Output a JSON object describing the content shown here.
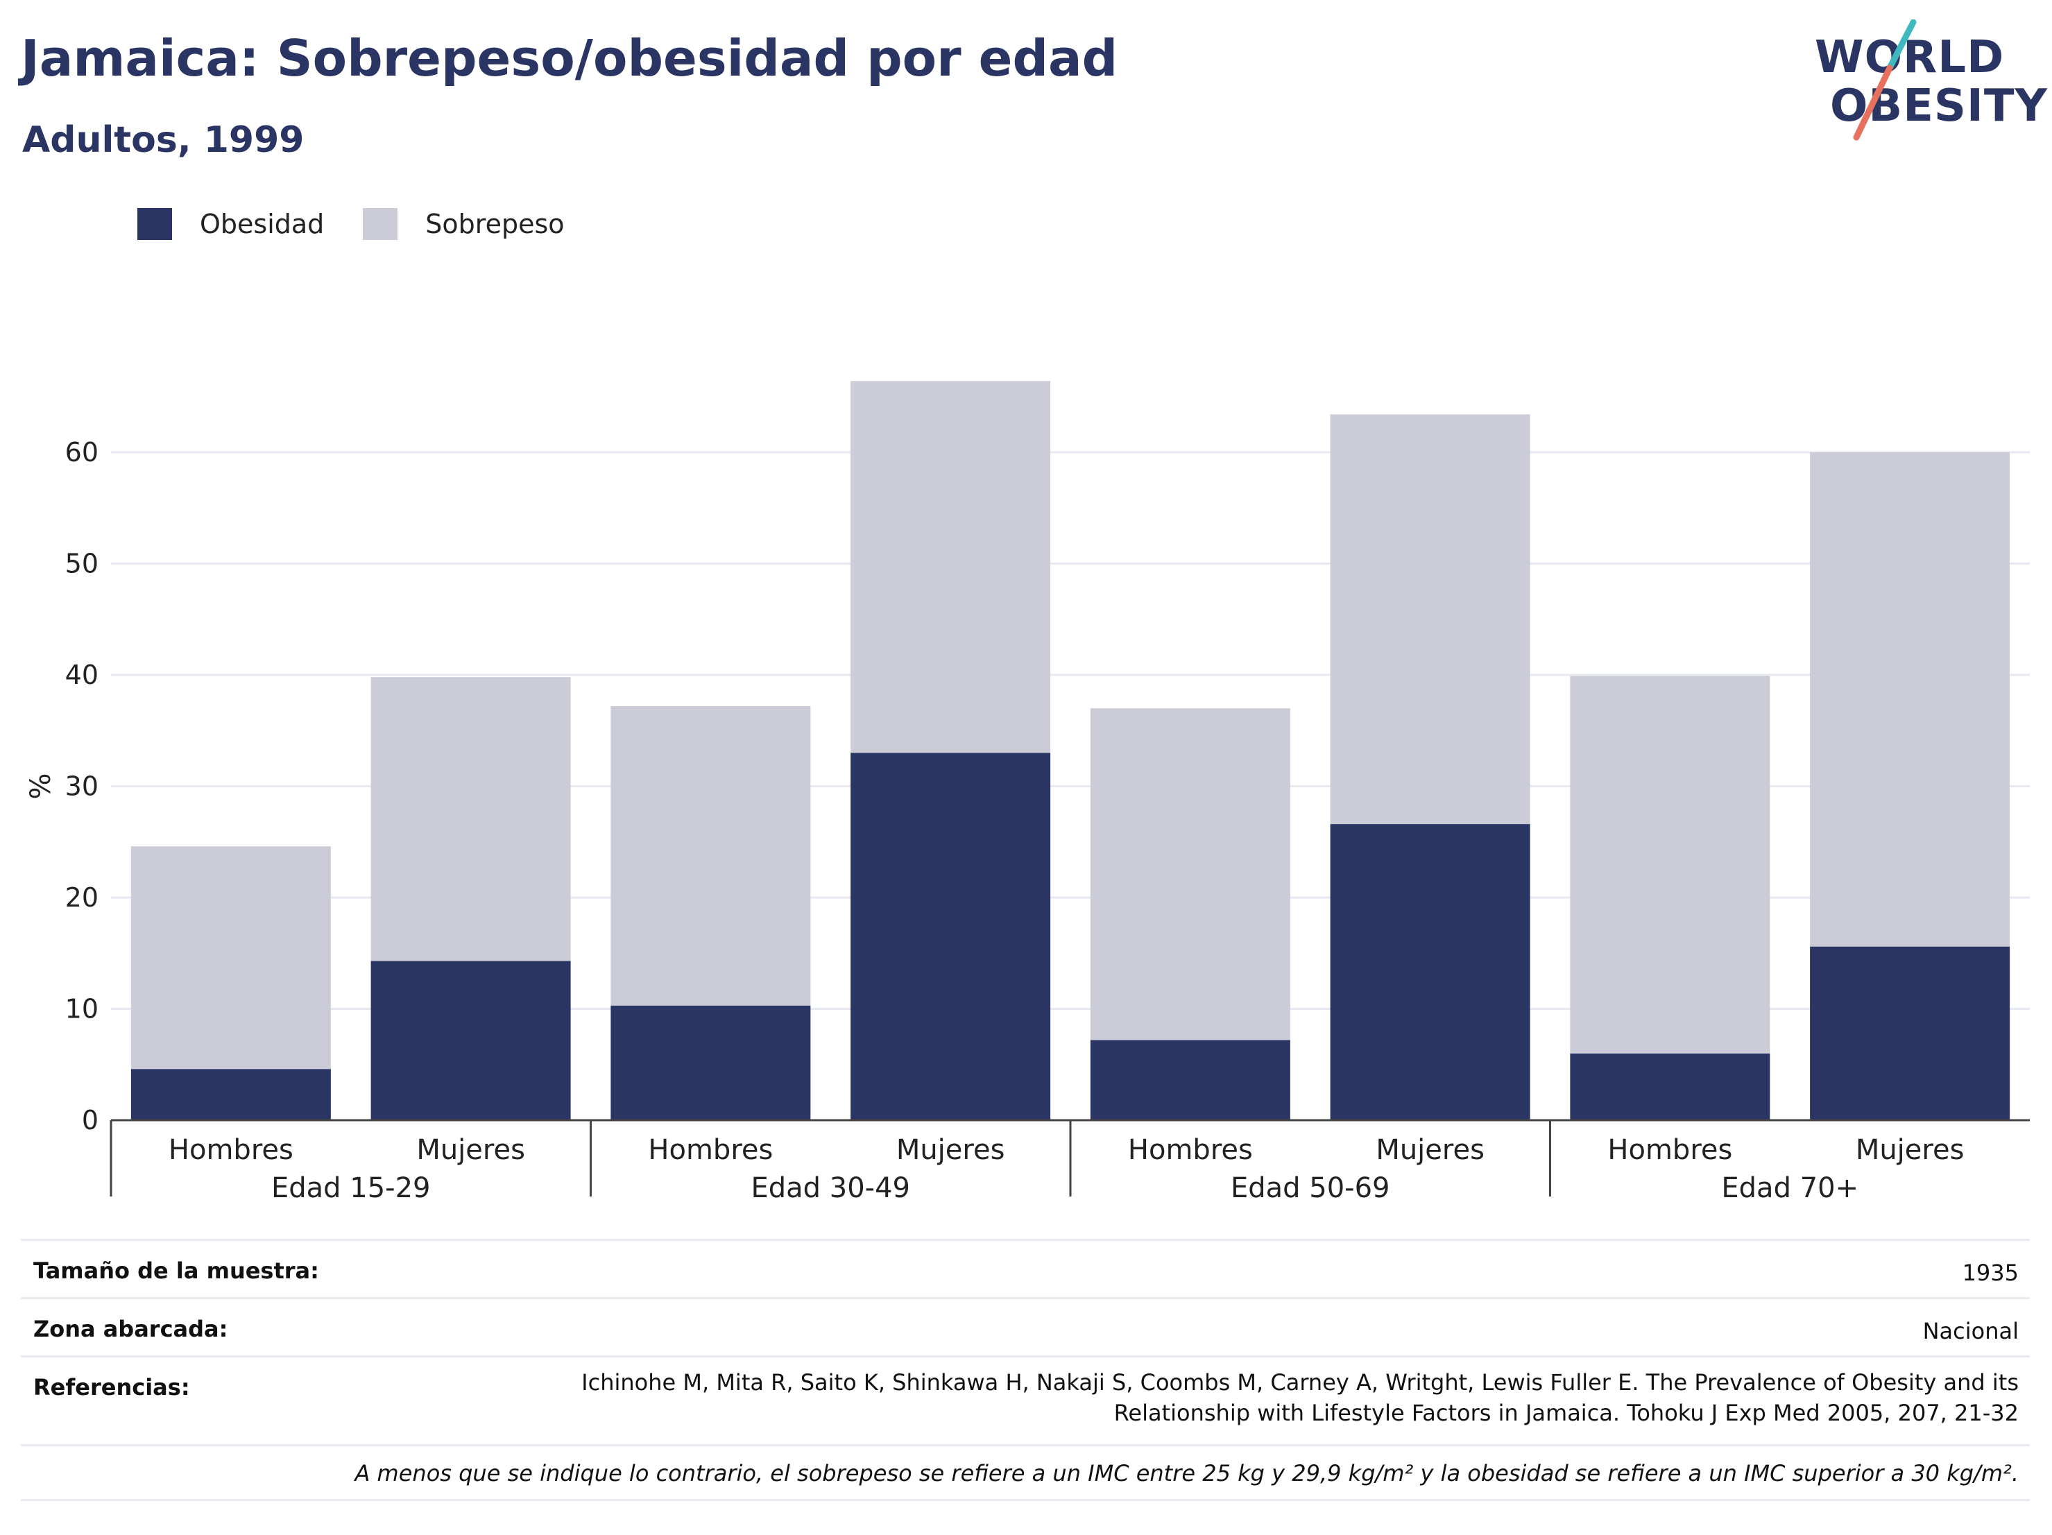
{
  "header": {
    "title": "Jamaica: Sobrepeso/obesidad por edad",
    "subtitle": "Adultos, 1999"
  },
  "logo": {
    "line1": "WORLD",
    "line2": "OBESITY",
    "accent_teal": "#3fb8c0",
    "accent_coral": "#e8705e"
  },
  "legend": [
    {
      "label": "Obesidad",
      "color": "#2a3563"
    },
    {
      "label": "Sobrepeso",
      "color": "#cbccd8"
    }
  ],
  "chart_data": {
    "type": "bar",
    "stacked": true,
    "ylabel": "%",
    "ylim": [
      0,
      70
    ],
    "yticks": [
      0,
      10,
      20,
      30,
      40,
      50,
      60
    ],
    "grid": true,
    "groups": [
      "Edad 15-29",
      "Edad 30-49",
      "Edad 50-69",
      "Edad 70+"
    ],
    "categories": [
      "Hombres",
      "Mujeres",
      "Hombres",
      "Mujeres",
      "Hombres",
      "Mujeres",
      "Hombres",
      "Mujeres"
    ],
    "series": [
      {
        "name": "Obesidad",
        "color": "#2a3563",
        "values": [
          4.6,
          14.3,
          10.3,
          33.0,
          7.2,
          26.6,
          6.0,
          15.6
        ]
      },
      {
        "name": "Sobrepeso",
        "color": "#cbccd8",
        "values": [
          20.0,
          25.5,
          26.9,
          33.4,
          29.8,
          36.8,
          33.9,
          44.4
        ]
      }
    ]
  },
  "info": {
    "sample_label": "Tamaño de la muestra:",
    "sample_value": "1935",
    "area_label": "Zona abarcada:",
    "area_value": "Nacional",
    "ref_label": "Referencias:",
    "ref_line1": "Ichinohe M, Mita R, Saito K, Shinkawa H, Nakaji S, Coombs M, Carney A, Writght, Lewis Fuller E. The Prevalence of Obesity and its",
    "ref_line2": "Relationship with Lifestyle Factors in Jamaica. Tohoku J Exp Med 2005, 207, 21-32",
    "footnote": "A menos que se indique lo contrario, el sobrepeso se refiere a un IMC entre 25 kg y 29,9 kg/m² y la obesidad se refiere a un IMC superior a 30 kg/m²."
  }
}
